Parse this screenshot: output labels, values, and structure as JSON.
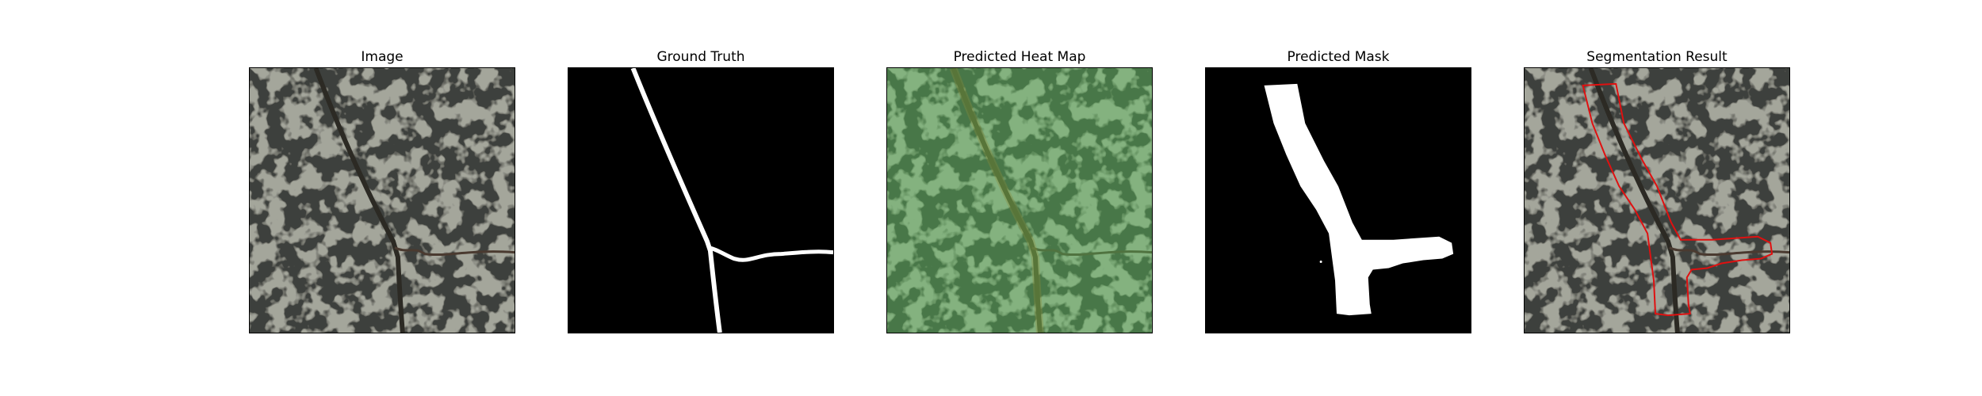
{
  "panels": [
    {
      "title": "Image"
    },
    {
      "title": "Ground Truth"
    },
    {
      "title": "Predicted Heat Map"
    },
    {
      "title": "Predicted Mask"
    },
    {
      "title": "Segmentation Result"
    }
  ],
  "colors": {
    "texture_light": "#9ea095",
    "texture_dark": "#3e403c",
    "vein": "#2c2a24",
    "mask": "#ffffff",
    "background": "#000000",
    "heat_tint": "#6bbf6b",
    "contour": "#e01010"
  }
}
